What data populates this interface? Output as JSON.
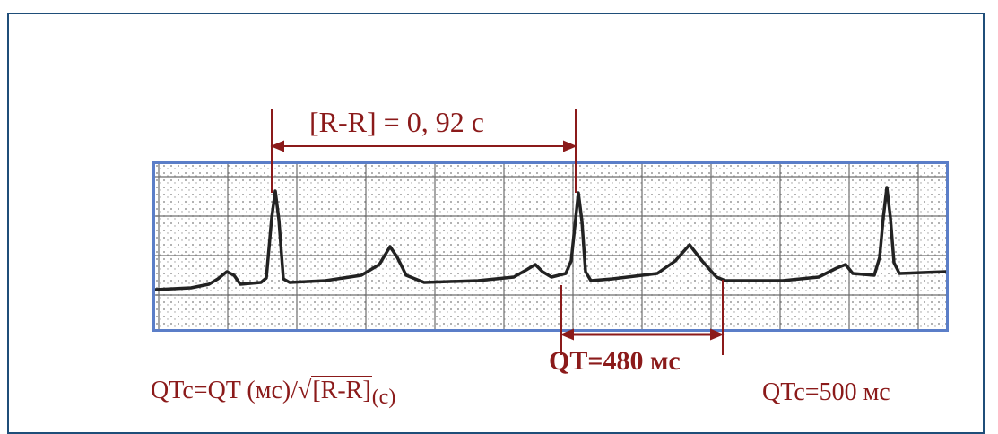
{
  "rr_interval": {
    "label": "[R-R] = 0, 92 с"
  },
  "qt_interval": {
    "label": "QT=480 мс"
  },
  "formula": {
    "prefix": "QTc=QT (мс)/",
    "radical": "√",
    "radicand": "[R-R]",
    "unit": "(с)"
  },
  "result": {
    "label": "QTc=500 мс"
  },
  "colors": {
    "annotation": "#8b1a1a",
    "strip_border": "#5b7ec8",
    "frame_border": "#1f4e79",
    "trace": "#222222"
  }
}
